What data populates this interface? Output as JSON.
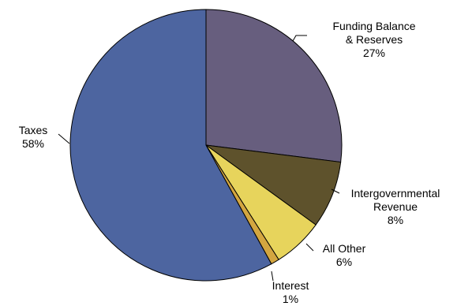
{
  "chart_data": {
    "type": "pie",
    "slices": [
      {
        "name": "Funding Balance & Reserves",
        "label_lines": [
          "Funding Balance",
          "& Reserves",
          "27%"
        ],
        "value": 27,
        "color": "#675e7e"
      },
      {
        "name": "Intergovernmental Revenue",
        "label_lines": [
          "Intergovernmental",
          "Revenue",
          "8%"
        ],
        "value": 8,
        "color": "#5e522c"
      },
      {
        "name": "All Other",
        "label_lines": [
          "All Other",
          "6%"
        ],
        "value": 6,
        "color": "#e7d45c"
      },
      {
        "name": "Interest",
        "label_lines": [
          "Interest",
          "1%"
        ],
        "value": 1,
        "color": "#d3a640"
      },
      {
        "name": "Taxes",
        "label_lines": [
          "Taxes",
          "58%"
        ],
        "value": 58,
        "color": "#4d65a0"
      }
    ],
    "start_angle": "12 o'clock",
    "direction": "clockwise",
    "legend": "none",
    "slice_outline": "#000000"
  }
}
